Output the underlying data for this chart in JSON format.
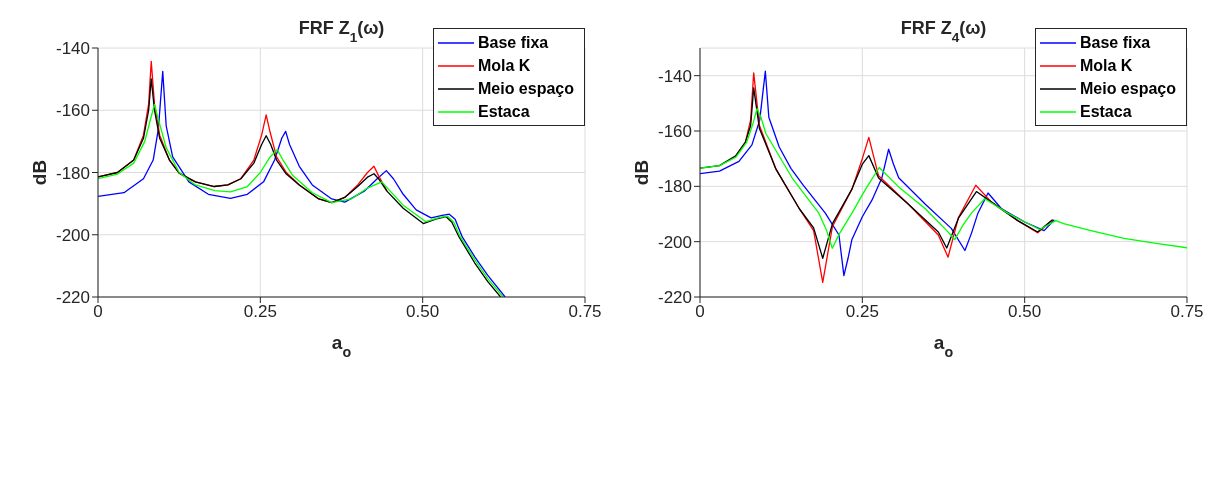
{
  "chart_data": [
    {
      "type": "line",
      "title": "FRF Z$_{1}$(ω)",
      "xlabel": "a$_{o}$",
      "ylabel": "dB",
      "xlim": [
        0,
        0.75
      ],
      "xticks": [
        0,
        0.25,
        {
          "value": 0.5,
          "label": "0.50"
        },
        0.75
      ],
      "ylim": [
        -220,
        -140
      ],
      "yticks": [
        -220,
        -200,
        -180,
        -160,
        -140
      ],
      "grid": true,
      "legend": "top right",
      "series": [
        {
          "name": "Base fixa",
          "color": "#0000ff",
          "x": [
            0,
            0.04,
            0.07,
            0.085,
            0.093,
            0.0997,
            0.105,
            0.115,
            0.14,
            0.17,
            0.204,
            0.23,
            0.255,
            0.272,
            0.283,
            0.289,
            0.295,
            0.31,
            0.33,
            0.36,
            0.38,
            0.41,
            0.43,
            0.444,
            0.455,
            0.47,
            0.49,
            0.513,
            0.53,
            0.541,
            0.55,
            0.561,
            0.58,
            0.6,
            0.627
          ],
          "values": [
            -187.7,
            -186.5,
            -182,
            -176,
            -166,
            -147.5,
            -165,
            -175,
            -183,
            -187,
            -188.3,
            -187,
            -183,
            -176,
            -169,
            -166.8,
            -171,
            -178,
            -184,
            -188.5,
            -189.5,
            -186,
            -182,
            -179.4,
            -182,
            -187,
            -192,
            -194.6,
            -193.8,
            -193.4,
            -195,
            -200.7,
            -207,
            -213,
            -220
          ]
        },
        {
          "name": "Mola K",
          "color": "#ff0000",
          "x": [
            0,
            0.03,
            0.055,
            0.07,
            0.078,
            0.082,
            0.087,
            0.095,
            0.11,
            0.125,
            0.15,
            0.179,
            0.2,
            0.22,
            0.24,
            0.252,
            0.259,
            0.265,
            0.275,
            0.29,
            0.31,
            0.34,
            0.36,
            0.38,
            0.4,
            0.415,
            0.425,
            0.432,
            0.445
          ],
          "values": [
            -181.4,
            -180,
            -176,
            -168,
            -158,
            -144.3,
            -158,
            -168,
            -176,
            -180.2,
            -183,
            -184.5,
            -184,
            -182,
            -176,
            -168,
            -161.5,
            -167,
            -175,
            -180,
            -184,
            -188.5,
            -189.7,
            -188,
            -184,
            -180,
            -178,
            -181,
            -186
          ]
        },
        {
          "name": "Meio espaço",
          "color": "#000000",
          "x": [
            0,
            0.03,
            0.055,
            0.07,
            0.078,
            0.082,
            0.087,
            0.095,
            0.11,
            0.125,
            0.15,
            0.179,
            0.2,
            0.22,
            0.24,
            0.252,
            0.259,
            0.266,
            0.275,
            0.29,
            0.31,
            0.34,
            0.36,
            0.38,
            0.4,
            0.415,
            0.425,
            0.432,
            0.445,
            0.47,
            0.501,
            0.52,
            0.536,
            0.545,
            0.556,
            0.58,
            0.6,
            0.62
          ],
          "values": [
            -181.4,
            -180,
            -176,
            -169,
            -160,
            -149.9,
            -160,
            -169,
            -176,
            -180.2,
            -183,
            -184.5,
            -184,
            -182,
            -177,
            -171,
            -168.2,
            -171,
            -176,
            -180.5,
            -184,
            -188.5,
            -189.7,
            -188,
            -184.5,
            -181.5,
            -180.4,
            -182,
            -186,
            -191.5,
            -196.4,
            -195,
            -194.2,
            -196,
            -200.7,
            -209,
            -215,
            -220
          ]
        },
        {
          "name": "Estaca",
          "color": "#00ff00",
          "x": [
            0,
            0.03,
            0.055,
            0.072,
            0.082,
            0.087,
            0.093,
            0.105,
            0.125,
            0.15,
            0.18,
            0.204,
            0.23,
            0.25,
            0.265,
            0.276,
            0.285,
            0.3,
            0.33,
            0.36,
            0.39,
            0.415,
            0.437,
            0.45,
            0.47,
            0.505,
            0.525,
            0.538,
            0.548,
            0.558,
            0.58,
            0.6,
            0.624
          ],
          "values": [
            -182,
            -180.5,
            -177,
            -170,
            -162,
            -158.1,
            -163,
            -172,
            -180,
            -184,
            -185.8,
            -186.2,
            -184.5,
            -180,
            -175,
            -172.7,
            -176,
            -181,
            -186.5,
            -189.7,
            -188.5,
            -185,
            -183,
            -186,
            -190.5,
            -195.8,
            -194.5,
            -194,
            -196,
            -200.7,
            -208,
            -214,
            -220
          ]
        }
      ]
    },
    {
      "type": "line",
      "title": "FRF Z$_{4}$(ω)",
      "xlabel": "a$_{o}$",
      "ylabel": "dB",
      "xlim": [
        0,
        0.75
      ],
      "xticks": [
        0,
        0.25,
        {
          "value": 0.5,
          "label": "0.50"
        },
        0.75
      ],
      "ylim": [
        -220,
        -130
      ],
      "yticks": [
        -220,
        -200,
        -180,
        -160,
        -140
      ],
      "grid": true,
      "legend": "top right",
      "series": [
        {
          "name": "Base fixa",
          "color": "#0000ff",
          "x": [
            0,
            0.03,
            0.06,
            0.08,
            0.092,
            0.1006,
            0.106,
            0.122,
            0.14,
            0.158,
            0.193,
            0.214,
            0.2216,
            0.228,
            0.234,
            0.25,
            0.265,
            0.28,
            0.2905,
            0.298,
            0.306,
            0.347,
            0.387,
            0.408,
            0.418,
            0.428,
            0.4436,
            0.464,
            0.5,
            0.53,
            0.5457
          ],
          "values": [
            -175.4,
            -174.5,
            -171,
            -165,
            -156,
            -138.4,
            -155,
            -165.8,
            -173.5,
            -179.3,
            -189.7,
            -197.6,
            -212.3,
            -206,
            -199.2,
            -191,
            -184.9,
            -177,
            -166.6,
            -172,
            -176.9,
            -186.5,
            -195.2,
            -203.2,
            -197,
            -189.7,
            -182.4,
            -188,
            -192.9,
            -196,
            -192.1
          ]
        },
        {
          "name": "Mola K",
          "color": "#ff0000",
          "x": [
            0.055,
            0.07,
            0.078,
            0.0827,
            0.0914,
            0.117,
            0.153,
            0.175,
            0.189,
            0.204,
            0.234,
            0.25,
            0.26,
            0.275,
            0.321,
            0.367,
            0.382,
            0.398,
            0.4247,
            0.449,
            0.49,
            0.52,
            0.543
          ],
          "values": [
            -169,
            -164,
            -156,
            -139,
            -157.9,
            -173.8,
            -188.1,
            -196,
            -214.7,
            -194.5,
            -181,
            -170,
            -162.3,
            -176.2,
            -186.5,
            -197.6,
            -205.6,
            -191.3,
            -179.6,
            -185.7,
            -192.5,
            -196.8,
            -192.1
          ]
        },
        {
          "name": "Meio espaço",
          "color": "#000000",
          "x": [
            0,
            0.03,
            0.055,
            0.07,
            0.078,
            0.0827,
            0.0914,
            0.117,
            0.153,
            0.175,
            0.189,
            0.204,
            0.234,
            0.25,
            0.26,
            0.275,
            0.321,
            0.367,
            0.38,
            0.398,
            0.4257,
            0.449,
            0.49,
            0.52,
            0.543
          ],
          "values": [
            -173.4,
            -172.5,
            -169,
            -164,
            -158,
            -144.4,
            -159,
            -173.8,
            -188.1,
            -195,
            -206,
            -193.5,
            -181,
            -172,
            -168.9,
            -177,
            -186.5,
            -196.5,
            -202.3,
            -191.5,
            -181.9,
            -185.7,
            -192.5,
            -196.5,
            -192.1
          ]
        },
        {
          "name": "Estaca",
          "color": "#00ff00",
          "x": [
            0,
            0.03,
            0.055,
            0.072,
            0.082,
            0.0878,
            0.0938,
            0.1016,
            0.142,
            0.183,
            0.195,
            0.2037,
            0.215,
            0.234,
            0.255,
            0.276,
            0.306,
            0.347,
            0.38,
            0.3925,
            0.405,
            0.418,
            0.4385,
            0.474,
            0.523,
            0.548,
            0.56,
            0.602,
            0.653,
            0.7,
            0.75
          ],
          "values": [
            -173.4,
            -172.5,
            -169.5,
            -164,
            -157,
            -151.9,
            -155,
            -161,
            -177,
            -189.7,
            -196,
            -202.4,
            -197,
            -189.7,
            -181,
            -173.2,
            -180.2,
            -188.1,
            -196,
            -199.2,
            -194,
            -189.7,
            -184.5,
            -189.7,
            -195.6,
            -192.4,
            -193.5,
            -196,
            -198.8,
            -200.5,
            -202.2
          ]
        }
      ]
    }
  ]
}
